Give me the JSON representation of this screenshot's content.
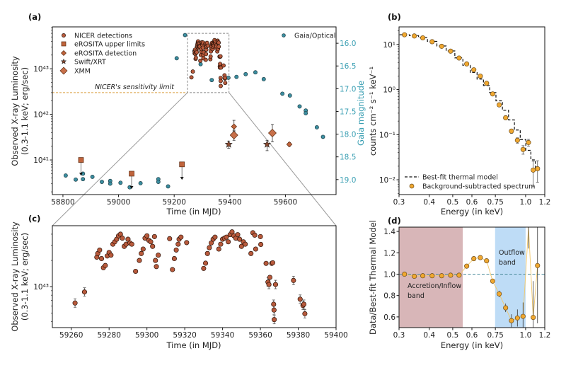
{
  "colors": {
    "nicer": "#b85a3c",
    "erosita": "#c0643c",
    "xmm": "#c8704a",
    "gaia": "#3b8ea0",
    "gaia_axis": "#3a9fb3",
    "spectrum": "#f0a830",
    "sensitivity": "#d9a040",
    "inflow_band": "#d8b6b8",
    "outflow_band": "#bedcf6",
    "model": "#111111"
  },
  "chart_data": [
    {
      "panel": "(a)",
      "type": "scatter",
      "xlabel": "Time (in MJD)",
      "ylabel_lines": [
        "Observed X-ray Luminosity",
        "(0.3-1.1 keV; erg/sec)"
      ],
      "y2label": "Gaia magnitude",
      "xlim": [
        58762,
        59782
      ],
      "ylim": [
        1.74e+40,
        8.3e+43
      ],
      "y_scale": "log",
      "y2lim": [
        15.64,
        19.33
      ],
      "y2_inverted": true,
      "grid": false,
      "legend": "top-left",
      "legend2": "top-right",
      "xticks": [
        {
          "value": 58800,
          "label": "58800"
        },
        {
          "value": 59000,
          "label": "59000"
        },
        {
          "value": 59200,
          "label": "59200"
        },
        {
          "value": 59400,
          "label": "59400"
        },
        {
          "value": 59600,
          "label": "59600"
        }
      ],
      "yticks": [
        {
          "value": 1e+41,
          "label": "10⁴¹"
        },
        {
          "value": 1e+42,
          "label": "10⁴²"
        },
        {
          "value": 1e+43,
          "label": "10⁴³"
        }
      ],
      "y2ticks": [
        {
          "value": 16.0,
          "label": "16.0"
        },
        {
          "value": 16.5,
          "label": "16.5"
        },
        {
          "value": 17.0,
          "label": "17.0"
        },
        {
          "value": 17.5,
          "label": "17.5"
        },
        {
          "value": 18.0,
          "label": "18.0"
        },
        {
          "value": 18.5,
          "label": "18.5"
        },
        {
          "value": 19.0,
          "label": "19.0"
        }
      ],
      "sensitivity_limit": {
        "value": 3e+42,
        "label": "NICER's sensitivity limit"
      },
      "zoom_box": {
        "xlim": [
          59248,
          59397
        ],
        "ylim": [
          3e+42,
          6e+43
        ]
      },
      "series": [
        {
          "name": "NICER detections",
          "marker": "circle",
          "points": [
            [
              59262,
              6.5e+42
            ],
            [
              59267,
              8.7e+42
            ],
            [
              59273.5,
              2.18e+43
            ],
            [
              59274,
              2.4e+43
            ],
            [
              59275,
              2.63e+43
            ],
            [
              59276,
              2.1e+43
            ],
            [
              59277,
              1.65e+43
            ],
            [
              59278,
              1.75e+43
            ],
            [
              59279,
              2.25e+43
            ],
            [
              59280,
              2.47e+43
            ],
            [
              59281,
              2.3e+43
            ],
            [
              59282,
              3.07e+43
            ],
            [
              59283,
              3.27e+43
            ],
            [
              59284,
              3.5e+43
            ],
            [
              59285,
              3.83e+43
            ],
            [
              59286,
              4e+43
            ],
            [
              59287,
              3.6e+43
            ],
            [
              59288,
              2.9e+43
            ],
            [
              59289,
              3.07e+43
            ],
            [
              59290,
              3.5e+43
            ],
            [
              59291,
              3.17e+43
            ],
            [
              59292,
              3.07e+43
            ],
            [
              59294,
              1.5e+43
            ],
            [
              59296,
              2e+43
            ],
            [
              59297,
              2.4e+43
            ],
            [
              59298,
              2.7e+43
            ],
            [
              59299,
              3.6e+43
            ],
            [
              59300,
              3.83e+43
            ],
            [
              59301,
              3.4e+43
            ],
            [
              59302,
              3.27e+43
            ],
            [
              59303,
              2.9e+43
            ],
            [
              59304,
              3.75e+43
            ],
            [
              59304.5,
              2e+43
            ],
            [
              59305,
              1.7e+43
            ],
            [
              59306,
              2.3e+43
            ],
            [
              59312,
              3.55e+43
            ],
            [
              59313.5,
              1.57e+43
            ],
            [
              59314.5,
              2.1e+43
            ],
            [
              59315.5,
              2.63e+43
            ],
            [
              59316.5,
              3.07e+43
            ],
            [
              59317,
              3.5e+43
            ],
            [
              59318,
              3.7e+43
            ],
            [
              59321,
              3.2e+43
            ],
            [
              59330,
              1.62e+43
            ],
            [
              59331,
              1.86e+43
            ],
            [
              59332,
              2.4e+43
            ],
            [
              59333,
              2.8e+43
            ],
            [
              59334,
              3.17e+43
            ],
            [
              59335,
              3.5e+43
            ],
            [
              59336,
              3.7e+43
            ],
            [
              59338,
              2.7e+43
            ],
            [
              59339,
              3.07e+43
            ],
            [
              59340,
              3.5e+43
            ],
            [
              59341,
              3.6e+43
            ],
            [
              59342,
              3.7e+43
            ],
            [
              59343,
              3.27e+43
            ],
            [
              59344,
              3.95e+43
            ],
            [
              59345,
              4.25e+43
            ],
            [
              59346,
              3.83e+43
            ],
            [
              59347,
              3.6e+43
            ],
            [
              59348,
              3.95e+43
            ],
            [
              59349,
              3.5e+43
            ],
            [
              59350,
              2.9e+43
            ],
            [
              59351,
              3.27e+43
            ],
            [
              59352,
              3.07e+43
            ],
            [
              59355,
              2.4e+43
            ],
            [
              59356,
              4.15e+43
            ],
            [
              59357,
              3.9e+43
            ],
            [
              59357.5,
              2.7e+43
            ],
            [
              59360,
              3.75e+43
            ],
            [
              59360.2,
              3.05e+43
            ],
            [
              59363,
              1.85e+43
            ],
            [
              59364,
              1.13e+43
            ],
            [
              59364.5,
              1.06e+43
            ],
            [
              59365,
              1.28e+43
            ],
            [
              59366,
              1.85e+43
            ],
            [
              59366.5,
              1.88e+43
            ],
            [
              59367,
              6.3e+42
            ],
            [
              59367.2,
              5.4e+42
            ],
            [
              59367.3,
              4.2e+42
            ],
            [
              59368,
              1.06e+43
            ],
            [
              59377.5,
              1.18e+43
            ],
            [
              59381,
              7.2e+42
            ],
            [
              59382.5,
              6.1e+42
            ],
            [
              59383,
              6.3e+42
            ],
            [
              59383.5,
              4.9e+42
            ]
          ]
        },
        {
          "name": "eROSITA upper limits",
          "marker": "square",
          "points": [
            {
              "x": 58865,
              "y": 1e+41,
              "arrow_to": 4.7e+40
            },
            {
              "x": 59047,
              "y": 5e+40,
              "arrow_to": 2.4e+40
            },
            {
              "x": 59228,
              "y": 8e+40,
              "arrow_to": 3.8e+40
            }
          ]
        },
        {
          "name": "eROSITA detection",
          "marker": "small-diamond",
          "points": [
            {
              "x": 59415,
              "y": 5.4e+41,
              "lo": 4.3e+41,
              "hi": 7.4e+41
            },
            {
              "x": 59614,
              "y": 2.2e+41,
              "lo": 2e+41,
              "hi": 2.4e+41
            }
          ]
        },
        {
          "name": "Swift/XRT",
          "marker": "star",
          "points": [
            {
              "x": 59396,
              "y": 2.2e+41,
              "lo": 1.8e+41,
              "hi": 2.6e+41
            },
            {
              "x": 59534,
              "y": 2.2e+41,
              "lo": 1.6e+41,
              "hi": 2.7e+41
            }
          ]
        },
        {
          "name": "XMM",
          "marker": "diamond",
          "points": [
            {
              "x": 59415,
              "y": 3.5e+41,
              "lo": 2.7e+41,
              "hi": 4.5e+41
            },
            {
              "x": 59553,
              "y": 3.9e+41,
              "lo": 2.5e+41,
              "hi": 6e+41
            }
          ]
        },
        {
          "name": "Gaia/Optical",
          "marker": "circle",
          "axis": "y2",
          "points": [
            [
              58810,
              18.91
            ],
            [
              58846,
              19.0
            ],
            [
              58872,
              18.87
            ],
            [
              58872,
              18.99
            ],
            [
              58906,
              18.94
            ],
            [
              58940,
              19.05
            ],
            [
              58970,
              19.03
            ],
            [
              58970,
              19.09
            ],
            [
              59007,
              19.07
            ],
            [
              59040,
              19.17
            ],
            [
              59079,
              19.08
            ],
            [
              59143,
              18.99
            ],
            [
              59143,
              19.05
            ],
            [
              59178,
              19.15
            ],
            [
              59209,
              16.33
            ],
            [
              59239,
              15.82
            ],
            [
              59273,
              16.17
            ],
            [
              59295,
              16.46
            ],
            [
              59335,
              16.81
            ],
            [
              59395,
              16.76
            ],
            [
              59424,
              16.74
            ],
            [
              59457,
              16.68
            ],
            [
              59492,
              16.64
            ],
            [
              59522,
              16.79
            ],
            [
              59589,
              17.11
            ],
            [
              59616,
              17.15
            ],
            [
              59651,
              17.39
            ],
            [
              59673,
              17.48
            ],
            [
              59673,
              17.54
            ],
            [
              59713,
              17.85
            ],
            [
              59735,
              18.06
            ]
          ]
        }
      ]
    },
    {
      "panel": "(b)",
      "type": "scatter",
      "xlabel": "Energy (in keV)",
      "ylabel": "counts cm⁻² s⁻¹ keV⁻¹",
      "xlim": [
        0.3,
        1.2
      ],
      "x_scale": "log",
      "ylim": [
        0.0047,
        24.5
      ],
      "y_scale": "log",
      "grid": false,
      "legend": "bottom-left",
      "xticks": [
        {
          "value": 0.3,
          "label": "0.3"
        },
        {
          "value": 0.4,
          "label": "0.4"
        },
        {
          "value": 0.5,
          "label": "0.5"
        },
        {
          "value": 0.6,
          "label": "0.6"
        },
        {
          "value": 0.75,
          "label": "0.75"
        },
        {
          "value": 1.0,
          "label": "1.0"
        },
        {
          "value": 1.2,
          "label": "1.2"
        }
      ],
      "yticks": [
        {
          "value": 0.01,
          "label": "10⁻²"
        },
        {
          "value": 0.1,
          "label": "10⁻¹"
        },
        {
          "value": 1,
          "label": "10⁰"
        },
        {
          "value": 10,
          "label": "10¹"
        }
      ],
      "energy": [
        0.316,
        0.347,
        0.376,
        0.411,
        0.45,
        0.49,
        0.531,
        0.571,
        0.611,
        0.65,
        0.69,
        0.731,
        0.778,
        0.827,
        0.874,
        0.925,
        0.976,
        1.028,
        1.075,
        1.12
      ],
      "series": [
        {
          "name": "Best-fit thermal model",
          "style": "dashed-step",
          "values": [
            16.4,
            15.7,
            14.2,
            11.7,
            9.24,
            7.17,
            5.05,
            3.44,
            2.39,
            1.71,
            1.23,
            0.856,
            0.562,
            0.346,
            0.212,
            0.127,
            0.078,
            0.045,
            0.0276,
            0.0163
          ]
        },
        {
          "name": "Background-subtracted spectrum",
          "style": "circle",
          "values": [
            16.4,
            15.4,
            14.0,
            11.5,
            9.1,
            7.1,
            5.0,
            3.7,
            2.74,
            1.98,
            1.38,
            0.8,
            0.458,
            0.237,
            0.12,
            0.075,
            0.047,
            0.067,
            0.0164,
            0.0176
          ]
        }
      ]
    },
    {
      "panel": "(c)",
      "type": "scatter",
      "xlabel": "Time (in MJD)",
      "ylabel_lines": [
        "Observed X-ray Luminosity",
        "(0.3-1.1 keV; erg/sec)"
      ],
      "xlim": [
        59250,
        59400
      ],
      "ylim": [
        3.4e+42,
        5e+43
      ],
      "y_scale": "log",
      "grid": false,
      "xticks": [
        {
          "value": 59260,
          "label": "59260"
        },
        {
          "value": 59280,
          "label": "59280"
        },
        {
          "value": 59300,
          "label": "59300"
        },
        {
          "value": 59320,
          "label": "59320"
        },
        {
          "value": 59340,
          "label": "59340"
        },
        {
          "value": 59360,
          "label": "59360"
        },
        {
          "value": 59380,
          "label": "59380"
        },
        {
          "value": 59400,
          "label": "59400"
        }
      ],
      "yticks": [
        {
          "value": 1e+43,
          "label": "10⁴³"
        }
      ],
      "series_ref": "NICER detections (zoom of panel (a))"
    },
    {
      "panel": "(d)",
      "type": "scatter",
      "xlabel": "Energy (in keV)",
      "ylabel": "Data/Best-fit Thermal Model",
      "xlim": [
        0.3,
        1.2
      ],
      "x_scale": "log",
      "ylim": [
        0.5,
        1.44
      ],
      "grid": false,
      "reference_line": 1.0,
      "xticks": [
        {
          "value": 0.3,
          "label": "0.3"
        },
        {
          "value": 0.4,
          "label": "0.4"
        },
        {
          "value": 0.5,
          "label": "0.5"
        },
        {
          "value": 0.6,
          "label": "0.6"
        },
        {
          "value": 0.75,
          "label": "0.75"
        },
        {
          "value": 1.0,
          "label": "1.0"
        },
        {
          "value": 1.2,
          "label": "1.2"
        }
      ],
      "yticks": [
        {
          "value": 0.6,
          "label": "0.6"
        },
        {
          "value": 0.8,
          "label": "0.8"
        },
        {
          "value": 1.0,
          "label": "1.0"
        },
        {
          "value": 1.2,
          "label": "1.2"
        },
        {
          "value": 1.4,
          "label": "1.4"
        }
      ],
      "bands": [
        {
          "lines": [
            "Accretion/Inflow",
            "band"
          ],
          "range": [
            0.3,
            0.55
          ],
          "color": "#d8b6b8"
        },
        {
          "lines": [
            "Outflow",
            "band"
          ],
          "range": [
            0.748,
            1.0
          ],
          "color": "#bedcf6"
        }
      ],
      "ratio": [
        1.0,
        0.98,
        0.985,
        0.985,
        0.985,
        0.99,
        0.99,
        1.075,
        1.145,
        1.155,
        1.125,
        0.935,
        0.815,
        0.685,
        0.565,
        0.59,
        0.605,
        1.5,
        0.595,
        1.08
      ],
      "ratio_err": [
        0.005,
        0.005,
        0.005,
        0.005,
        0.005,
        0.005,
        0.005,
        0.01,
        0.01,
        0.01,
        0.01,
        0.02,
        0.03,
        0.04,
        0.06,
        0.08,
        0.13,
        0.26,
        0.34,
        0.54
      ]
    }
  ]
}
